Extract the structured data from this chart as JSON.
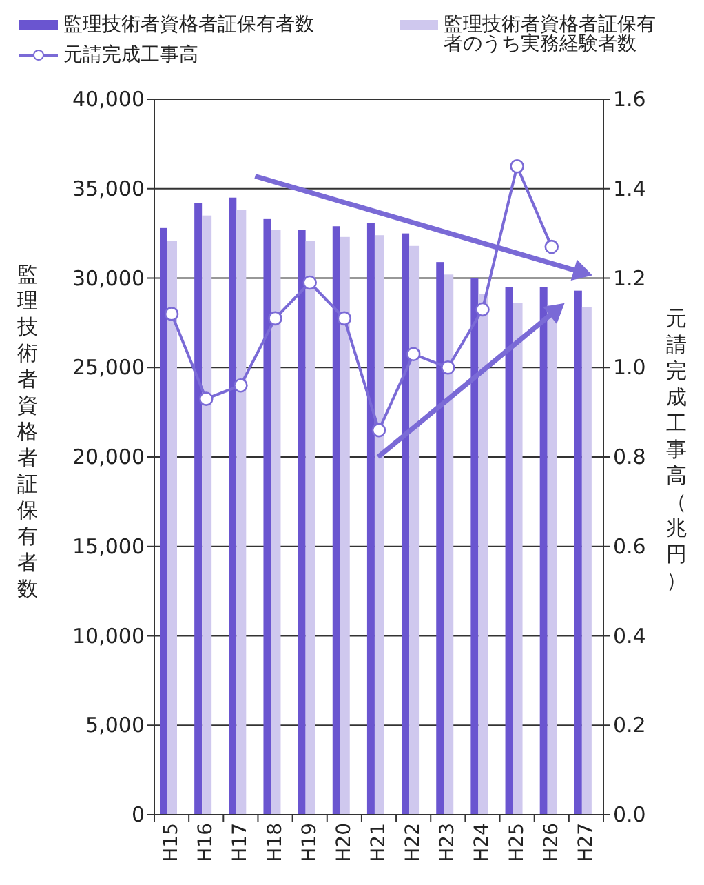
{
  "chart_data": {
    "type": "bar",
    "xlabel": null,
    "ylabel": "監理技術者資格者証保有者数",
    "y2label": "元請完成工事高（兆円）",
    "categories": [
      "H15",
      "H16",
      "H17",
      "H18",
      "H19",
      "H20",
      "H21",
      "H22",
      "H23",
      "H24",
      "H25",
      "H26",
      "H27"
    ],
    "series": [
      {
        "name": "監理技術者資格者証保有者数",
        "color": "#6a55d0",
        "values": [
          32800,
          34200,
          34500,
          33300,
          32700,
          32900,
          33100,
          32500,
          30900,
          30000,
          29500,
          29500,
          29300
        ]
      },
      {
        "name": "監理技術者資格者証保有者のうち実務経験者数",
        "color": "#cfc8ee",
        "values": [
          32100,
          33500,
          33800,
          32700,
          32100,
          32300,
          32400,
          31800,
          30200,
          29100,
          28600,
          28500,
          28400
        ]
      },
      {
        "name": "元請完成工事高",
        "type": "line",
        "axis": "y2",
        "color": "#7a6ad6",
        "marker": "circle",
        "line_style": "solid",
        "values": [
          1.12,
          0.93,
          0.96,
          1.11,
          1.19,
          1.11,
          0.86,
          1.03,
          1.0,
          1.13,
          1.45,
          1.27,
          null
        ]
      }
    ],
    "ylim": [
      0,
      40000
    ],
    "yticks": [
      {
        "value": 0,
        "label": "0"
      },
      {
        "value": 5000,
        "label": "5,000"
      },
      {
        "value": 10000,
        "label": "10,000"
      },
      {
        "value": 15000,
        "label": "15,000"
      },
      {
        "value": 20000,
        "label": "20,000"
      },
      {
        "value": 25000,
        "label": "25,000"
      },
      {
        "value": 30000,
        "label": "30,000"
      },
      {
        "value": 35000,
        "label": "35,000"
      },
      {
        "value": 40000,
        "label": "40,000"
      }
    ],
    "y2lim": [
      0,
      1.6
    ],
    "y2ticks": [
      {
        "value": 0,
        "label": "0.0"
      },
      {
        "value": 0.2,
        "label": "0.2"
      },
      {
        "value": 0.4,
        "label": "0.4"
      },
      {
        "value": 0.6,
        "label": "0.6"
      },
      {
        "value": 0.8,
        "label": "0.8"
      },
      {
        "value": 1,
        "label": "1.0"
      },
      {
        "value": 1.2,
        "label": "1.2"
      },
      {
        "value": 1.4,
        "label": "1.4"
      },
      {
        "value": 1.6,
        "label": "1.6"
      }
    ],
    "grid": "y",
    "legend": "top"
  }
}
